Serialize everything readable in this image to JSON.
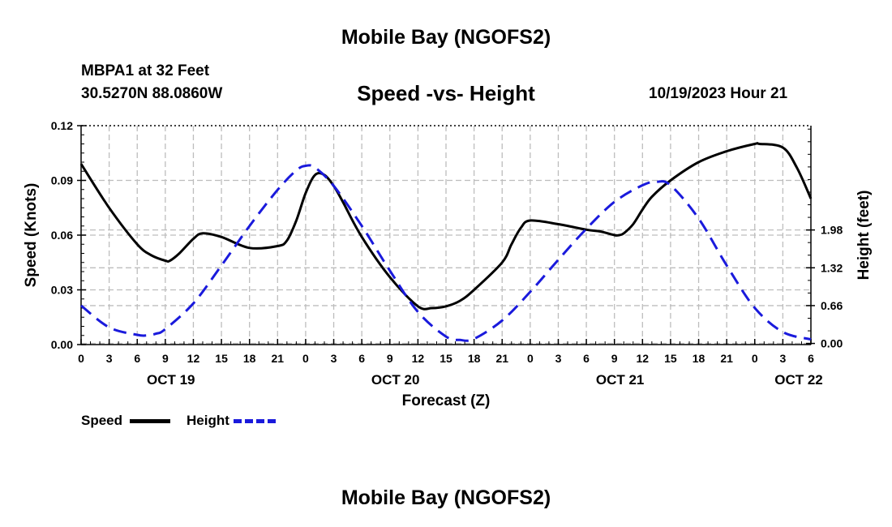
{
  "page": {
    "title": "Mobile Bay (NGOFS2)",
    "station": "MBPA1 at 32 Feet",
    "coordinates": "30.5270N  88.0860W",
    "subtitle": "Speed -vs- Height",
    "datetime": "10/19/2023 Hour 21",
    "bottom_title": "Mobile Bay (NGOFS2)",
    "colors": {
      "speed": "#000000",
      "height": "#1a1adc",
      "grid": "#bdbdbd"
    }
  },
  "chart_data": {
    "type": "line",
    "xlabel": "Forecast (Z)",
    "ylabel": "Speed (Knots)",
    "y2label": "Height (feet)",
    "xlim": [
      0,
      78
    ],
    "ylim": [
      0,
      0.12
    ],
    "y2lim": [
      -0.02,
      3.8
    ],
    "x_ticks": [
      0,
      3,
      6,
      9,
      12,
      15,
      18,
      21,
      24,
      27,
      30,
      33,
      36,
      39,
      42,
      45,
      48,
      51,
      54,
      57,
      60,
      63,
      66,
      69,
      72,
      75,
      78
    ],
    "x_tick_labels": [
      "0",
      "3",
      "6",
      "9",
      "12",
      "15",
      "18",
      "21",
      "0",
      "3",
      "6",
      "9",
      "12",
      "15",
      "18",
      "21",
      "0",
      "3",
      "6",
      "9",
      "12",
      "15",
      "18",
      "21",
      "0",
      "3",
      "6"
    ],
    "y_ticks": [
      0,
      0.03,
      0.06,
      0.09,
      0.12
    ],
    "y_tick_labels": [
      "0.00",
      "0.03",
      "0.06",
      "0.09",
      "0.12"
    ],
    "y2_ticks": [
      0.0,
      0.66,
      1.32,
      1.98
    ],
    "y2_tick_labels": [
      "0.00",
      "0.66",
      "1.32",
      "1.98"
    ],
    "day_labels": [
      {
        "x": 9.6,
        "label": "OCT 19"
      },
      {
        "x": 33.6,
        "label": "OCT 20"
      },
      {
        "x": 57.6,
        "label": "OCT 21"
      },
      {
        "x": 76.7,
        "label": "OCT 22"
      }
    ],
    "series": [
      {
        "name": "Speed",
        "axis": "left",
        "style": "solid",
        "x": [
          0,
          3,
          6,
          7.5,
          9,
          9.5,
          10.5,
          12,
          13,
          15,
          18,
          21,
          22,
          23,
          24,
          25,
          26,
          27,
          28,
          30,
          33,
          36,
          37.5,
          39,
          40.5,
          42,
          45,
          46,
          47,
          48,
          51,
          54,
          55.5,
          57,
          57.5,
          58,
          59,
          60,
          61,
          63,
          66,
          69,
          72,
          72.5,
          75,
          76.5,
          78
        ],
        "values": [
          0.099,
          0.075,
          0.055,
          0.049,
          0.046,
          0.046,
          0.05,
          0.058,
          0.061,
          0.059,
          0.053,
          0.054,
          0.057,
          0.068,
          0.083,
          0.093,
          0.093,
          0.087,
          0.078,
          0.059,
          0.037,
          0.021,
          0.02,
          0.021,
          0.024,
          0.03,
          0.045,
          0.055,
          0.064,
          0.068,
          0.066,
          0.063,
          0.062,
          0.06,
          0.06,
          0.061,
          0.066,
          0.074,
          0.081,
          0.09,
          0.1,
          0.106,
          0.11,
          0.11,
          0.108,
          0.097,
          0.08
        ]
      },
      {
        "name": "Height",
        "axis": "right",
        "style": "dashed",
        "x": [
          0,
          3,
          6,
          7,
          8,
          9,
          12,
          15,
          18,
          21,
          23,
          24,
          25,
          27,
          30,
          33,
          36,
          39,
          40.5,
          42,
          45,
          48,
          51,
          54,
          57,
          60,
          61.5,
          63,
          66,
          69,
          72,
          75,
          78
        ],
        "values": [
          0.66,
          0.28,
          0.15,
          0.14,
          0.17,
          0.25,
          0.7,
          1.36,
          2.05,
          2.68,
          3.02,
          3.1,
          3.07,
          2.75,
          2.05,
          1.27,
          0.55,
          0.12,
          0.06,
          0.08,
          0.4,
          0.9,
          1.46,
          2.0,
          2.47,
          2.76,
          2.82,
          2.76,
          2.18,
          1.36,
          0.62,
          0.2,
          0.07
        ]
      }
    ],
    "legend": [
      {
        "label": "Speed",
        "style": "solid"
      },
      {
        "label": "Height",
        "style": "dashed"
      }
    ]
  }
}
